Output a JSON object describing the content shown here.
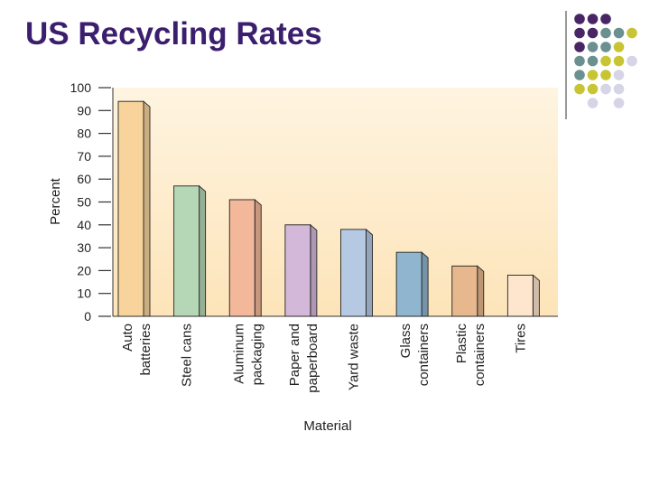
{
  "slide": {
    "title": "US Recycling Rates"
  },
  "chart_data": {
    "type": "bar",
    "title": "",
    "categories": [
      [
        "Auto",
        "batteries"
      ],
      [
        "Steel cans"
      ],
      [
        "Aluminum",
        "packaging"
      ],
      [
        "Paper and",
        "paperboard"
      ],
      [
        "Yard waste"
      ],
      [
        "Glass",
        "containers"
      ],
      [
        "Plastic",
        "containers"
      ],
      [
        "Tires"
      ]
    ],
    "values": [
      94,
      57,
      51,
      40,
      38,
      28,
      22,
      18
    ],
    "colors": [
      "#f8d49c",
      "#b6d7b5",
      "#f3b89a",
      "#d3b8d9",
      "#b5c9e3",
      "#90b5ce",
      "#e7b88d",
      "#fde5ce"
    ],
    "xlabel": "Material",
    "ylabel": "Percent",
    "ylim": [
      0,
      100
    ],
    "yticks": [
      0,
      10,
      20,
      30,
      40,
      50,
      60,
      70,
      80,
      90,
      100
    ],
    "background": {
      "top": "#fef4e0",
      "bottom": "#fde4b9"
    }
  },
  "decoration": {
    "colors": [
      "#4a2566",
      "#6b9090",
      "#c8c535",
      "#d5d5e6"
    ],
    "divider_color": "#555555"
  }
}
